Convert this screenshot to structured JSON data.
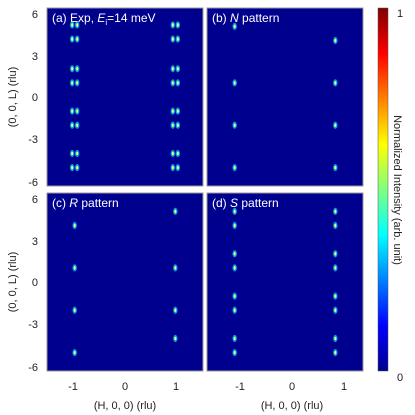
{
  "chart_data": [
    {
      "type": "heatmap",
      "panel_label": "(a)",
      "title_prefix": "Exp, ",
      "title_var": "E",
      "title_sub": "i",
      "title_suffix": "=14 meV",
      "xlabel": "(H, 0, 0) (rlu)",
      "ylabel": "(0, 0, L) (rlu)",
      "xlim": [
        -1.55,
        1.55
      ],
      "ylim": [
        -6.3,
        6.3
      ],
      "xticks": [
        "-1",
        "0",
        "1"
      ],
      "yticks": [
        "-6",
        "-3",
        "0",
        "3",
        "6"
      ],
      "background": "#00008f",
      "peaks": [
        {
          "x": -1.05,
          "y": 5.1
        },
        {
          "x": -0.95,
          "y": 5.1
        },
        {
          "x": -1.05,
          "y": 4.1
        },
        {
          "x": -0.95,
          "y": 4.1
        },
        {
          "x": -1.05,
          "y": 2.0
        },
        {
          "x": -0.95,
          "y": 2.0
        },
        {
          "x": -1.05,
          "y": 1.0
        },
        {
          "x": -0.95,
          "y": 1.0
        },
        {
          "x": -1.05,
          "y": -1.0
        },
        {
          "x": -0.95,
          "y": -1.0
        },
        {
          "x": -1.05,
          "y": -2.0
        },
        {
          "x": -0.95,
          "y": -2.0
        },
        {
          "x": -1.05,
          "y": -4.0
        },
        {
          "x": -0.95,
          "y": -4.0
        },
        {
          "x": -1.05,
          "y": -5.0
        },
        {
          "x": -0.95,
          "y": -5.0
        },
        {
          "x": 0.95,
          "y": 5.1
        },
        {
          "x": 1.05,
          "y": 5.1
        },
        {
          "x": 0.95,
          "y": 4.1
        },
        {
          "x": 1.05,
          "y": 4.1
        },
        {
          "x": 0.95,
          "y": 2.0
        },
        {
          "x": 1.05,
          "y": 2.0
        },
        {
          "x": 0.95,
          "y": 1.0
        },
        {
          "x": 1.05,
          "y": 1.0
        },
        {
          "x": 0.95,
          "y": -1.0
        },
        {
          "x": 1.05,
          "y": -1.0
        },
        {
          "x": 0.95,
          "y": -2.0
        },
        {
          "x": 1.05,
          "y": -2.0
        },
        {
          "x": 0.95,
          "y": -4.0
        },
        {
          "x": 1.05,
          "y": -4.0
        },
        {
          "x": 0.95,
          "y": -5.0
        },
        {
          "x": 1.05,
          "y": -5.0
        }
      ]
    },
    {
      "type": "heatmap",
      "panel_label": "(b)",
      "title_var": "N",
      "title_suffix": " pattern",
      "xlabel": "",
      "ylabel": "",
      "xlim": [
        -1.55,
        1.55
      ],
      "ylim": [
        -6.3,
        6.3
      ],
      "xticks": [],
      "yticks": [],
      "background": "#00008f",
      "peaks": [
        {
          "x": -1.0,
          "y": 5.0
        },
        {
          "x": -1.0,
          "y": 1.0
        },
        {
          "x": -1.0,
          "y": -2.0
        },
        {
          "x": -1.0,
          "y": -5.0
        },
        {
          "x": 1.0,
          "y": 4.0
        },
        {
          "x": 1.0,
          "y": 1.0
        },
        {
          "x": 1.0,
          "y": -2.0
        },
        {
          "x": 1.0,
          "y": -5.0
        }
      ]
    },
    {
      "type": "heatmap",
      "panel_label": "(c)",
      "title_var": "R",
      "title_suffix": " pattern",
      "xlabel": "(H, 0, 0) (rlu)",
      "ylabel": "(0, 0, L) (rlu)",
      "xlim": [
        -1.55,
        1.55
      ],
      "ylim": [
        -6.3,
        6.3
      ],
      "xticks": [
        "-1",
        "0",
        "1"
      ],
      "yticks": [
        "-6",
        "-3",
        "0",
        "3",
        "6"
      ],
      "background": "#00008f",
      "peaks": [
        {
          "x": -1.0,
          "y": 4.0
        },
        {
          "x": -1.0,
          "y": 1.0
        },
        {
          "x": -1.0,
          "y": -2.0
        },
        {
          "x": -1.0,
          "y": -5.0
        },
        {
          "x": 1.0,
          "y": 5.0
        },
        {
          "x": 1.0,
          "y": 1.0
        },
        {
          "x": 1.0,
          "y": -2.0
        },
        {
          "x": 1.0,
          "y": -4.0
        }
      ]
    },
    {
      "type": "heatmap",
      "panel_label": "(d)",
      "title_var": "S",
      "title_suffix": " pattern",
      "xlabel": "(H, 0, 0) (rlu)",
      "ylabel": "",
      "xlim": [
        -1.55,
        1.55
      ],
      "ylim": [
        -6.3,
        6.3
      ],
      "xticks": [
        "-1",
        "0",
        "1"
      ],
      "yticks": [],
      "background": "#00008f",
      "peaks": [
        {
          "x": -1.0,
          "y": 5.0
        },
        {
          "x": -1.0,
          "y": 4.0
        },
        {
          "x": -1.0,
          "y": 2.0
        },
        {
          "x": -1.0,
          "y": 1.0
        },
        {
          "x": -1.0,
          "y": -1.0
        },
        {
          "x": -1.0,
          "y": -2.0
        },
        {
          "x": -1.0,
          "y": -4.0
        },
        {
          "x": -1.0,
          "y": -5.0
        },
        {
          "x": 1.0,
          "y": 5.0
        },
        {
          "x": 1.0,
          "y": 4.0
        },
        {
          "x": 1.0,
          "y": 2.0
        },
        {
          "x": 1.0,
          "y": 1.0
        },
        {
          "x": 1.0,
          "y": -1.0
        },
        {
          "x": 1.0,
          "y": -2.0
        },
        {
          "x": 1.0,
          "y": -4.0
        },
        {
          "x": 1.0,
          "y": -5.0
        }
      ]
    }
  ],
  "colorbar": {
    "label": "Normalized Intensity (arb. unit)",
    "min_label": "0",
    "max_label": "1",
    "range": [
      0,
      1
    ],
    "colormap": "jet"
  }
}
